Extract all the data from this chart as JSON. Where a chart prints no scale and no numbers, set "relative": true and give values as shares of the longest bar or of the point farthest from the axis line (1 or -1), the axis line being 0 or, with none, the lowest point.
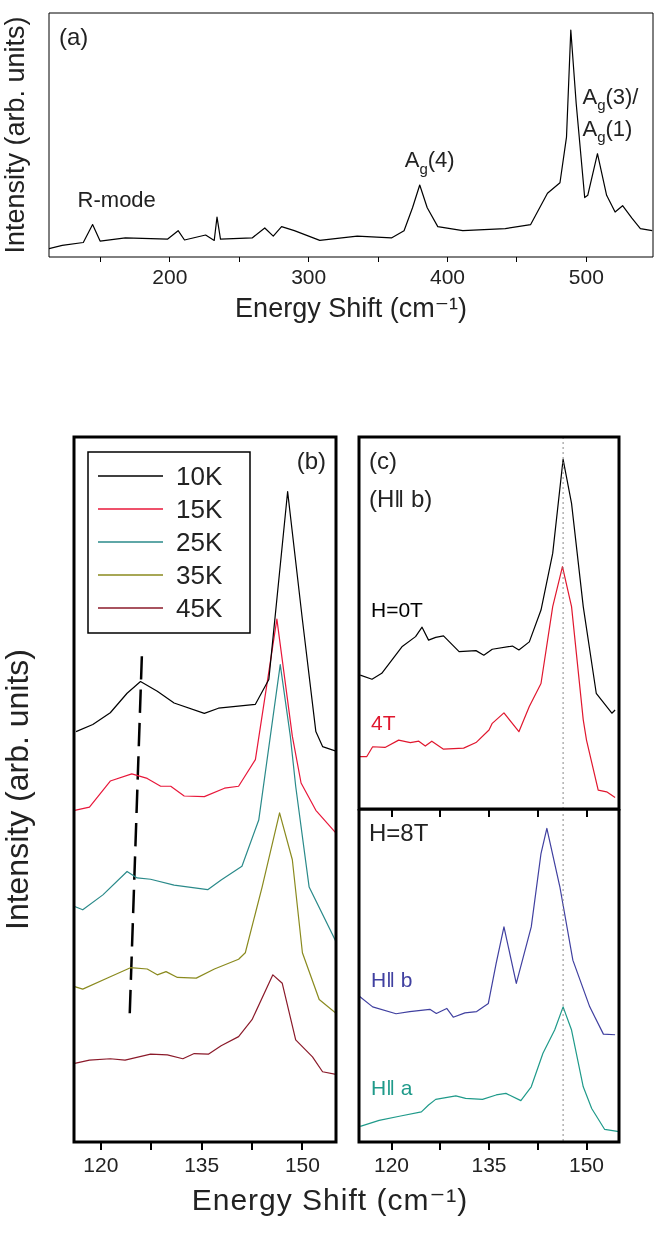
{
  "chart_data": [
    {
      "type": "line",
      "relative": true,
      "xlabel": "Energy Shift (cm⁻¹)",
      "ylabel": "Intensity (arb. units)",
      "xlim": [
        113,
        548
      ],
      "xticks": [
        {
          "value": 150,
          "label": null
        },
        200,
        {
          "value": 250,
          "label": null
        },
        300,
        {
          "value": 350,
          "label": null
        },
        400,
        {
          "value": 450,
          "label": null
        },
        500
      ],
      "annotations": [
        "(a)",
        {
          "text": "R-mode",
          "x": 144.4,
          "y": 0.143
        },
        {
          "text": "A$_{g}$(4)",
          "x": 380,
          "y": 0.317
        },
        {
          "text": "A$_{g}$(3)/\nA$_{g}$(1)",
          "x": 508,
          "y": 0.455
        }
      ],
      "series": [
        {
          "color": "#000000",
          "x": [
            113,
            122.5,
            137.7,
            144.4,
            149.8,
            168,
            198.5,
            206,
            210.6,
            225.8,
            232,
            234,
            236.5,
            259.3,
            268.4,
            274.5,
            280.5,
            289.7,
            308,
            335,
            359.6,
            368.7,
            374.8,
            380,
            385.4,
            393,
            411,
            441.6,
            459.9,
            472,
            481,
            485.7,
            488.8,
            492.7,
            498.8,
            501,
            508,
            514.6,
            520.7,
            526.1,
            532.8,
            538.9,
            547.4
          ],
          "values": [
            0.037,
            0.051,
            0.064,
            0.143,
            0.07,
            0.084,
            0.079,
            0.116,
            0.075,
            0.097,
            0.073,
            0.176,
            0.079,
            0.084,
            0.128,
            0.092,
            0.134,
            0.116,
            0.073,
            0.092,
            0.084,
            0.116,
            0.217,
            0.317,
            0.217,
            0.134,
            0.116,
            0.125,
            0.143,
            0.281,
            0.327,
            0.528,
            1.0,
            0.675,
            0.262,
            0.272,
            0.455,
            0.272,
            0.198,
            0.226,
            0.171,
            0.125,
            0.116
          ]
        }
      ]
    },
    {
      "type": "line",
      "relative": true,
      "xlabel": "Energy Shift (cm⁻¹)",
      "ylabel": "Intensity (arb. units)",
      "xlim": [
        116,
        155
      ],
      "xticks": [
        120,
        {
          "value": 127.5,
          "label": null
        },
        135,
        {
          "value": 142.5,
          "label": null
        },
        150
      ],
      "legend": "top left",
      "annotations": [
        "(b)"
      ],
      "series": [
        {
          "name": "10K",
          "color": "#000000",
          "x": [
            116.3,
            118.8,
            121.4,
            123.9,
            125.9,
            128.4,
            130.9,
            135.4,
            137.5,
            143.0,
            145.0,
            147.8,
            150.0,
            152.0,
            153.0,
            155.0
          ],
          "values": [
            0.631,
            0.642,
            0.66,
            0.69,
            0.708,
            0.693,
            0.675,
            0.659,
            0.667,
            0.673,
            0.711,
            1.0,
            0.803,
            0.631,
            0.608,
            0.601
          ]
        },
        {
          "name": "15K",
          "color": "#e8173a",
          "x": [
            116.1,
            118.3,
            121.4,
            124.6,
            126.9,
            128.9,
            130.4,
            132.4,
            135.4,
            138.4,
            140.5,
            143.0,
            146.2,
            148.5,
            149.8,
            152.0,
            155.0
          ],
          "values": [
            0.51,
            0.515,
            0.555,
            0.566,
            0.559,
            0.547,
            0.547,
            0.532,
            0.531,
            0.544,
            0.547,
            0.588,
            0.804,
            0.624,
            0.552,
            0.51,
            0.475
          ]
        },
        {
          "name": "25K",
          "color": "#2a8a8a",
          "x": [
            116.1,
            117.3,
            120.3,
            123.9,
            125.4,
            127.4,
            130.9,
            135.9,
            137.9,
            141.0,
            143.5,
            146.7,
            148.2,
            149.0,
            151.0,
            155.0
          ],
          "values": [
            0.362,
            0.357,
            0.38,
            0.416,
            0.406,
            0.404,
            0.395,
            0.388,
            0.403,
            0.424,
            0.495,
            0.734,
            0.624,
            0.547,
            0.392,
            0.308
          ]
        },
        {
          "name": "35K",
          "color": "#8a8a1e",
          "x": [
            116.1,
            117.3,
            121.4,
            124.4,
            126.9,
            128.4,
            129.7,
            131.4,
            134.2,
            136.9,
            140.5,
            141.5,
            144.0,
            146.6,
            148.5,
            150.0,
            152.5,
            155.0
          ],
          "values": [
            0.239,
            0.235,
            0.254,
            0.268,
            0.266,
            0.257,
            0.262,
            0.253,
            0.252,
            0.266,
            0.281,
            0.291,
            0.392,
            0.506,
            0.434,
            0.291,
            0.219,
            0.198
          ]
        },
        {
          "name": "45K",
          "color": "#8b1a2a",
          "x": [
            116.1,
            118.3,
            121.4,
            123.6,
            127.4,
            129.9,
            132.2,
            133.9,
            136.0,
            137.9,
            140.5,
            142.5,
            145.6,
            147.0,
            149.0,
            151.5,
            153.0,
            155.0
          ],
          "values": [
            0.121,
            0.126,
            0.128,
            0.126,
            0.135,
            0.134,
            0.128,
            0.136,
            0.135,
            0.148,
            0.162,
            0.188,
            0.257,
            0.244,
            0.157,
            0.131,
            0.108,
            0.104
          ]
        },
        {
          "type": "line",
          "color": "#000000",
          "line_style": "dashed",
          "x": [
            126.1,
            124.3
          ],
          "values": [
            0.747,
            0.198
          ]
        }
      ]
    },
    {
      "type": "line",
      "relative": true,
      "xlim": [
        115,
        155
      ],
      "xticks": [
        120,
        {
          "value": 127.5,
          "label": null
        },
        135,
        {
          "value": 142.5,
          "label": null
        },
        150
      ],
      "tick_labels": false,
      "annotations": [
        "(c)",
        "(H‖ b)"
      ],
      "ref_lines": [
        {
          "axis": "x",
          "value": 146.4,
          "color": "#888888",
          "line_style": "dotted"
        }
      ],
      "series": [
        {
          "name": "H=0T",
          "color": "#000000",
          "x": [
            115.2,
            117.0,
            118.5,
            121.6,
            123.7,
            124.7,
            125.7,
            126.8,
            128.0,
            130.4,
            133.0,
            134.2,
            135.5,
            138.6,
            139.6,
            141.2,
            143.0,
            144.8,
            146.4,
            147.7,
            149.5,
            151.5,
            153.9,
            154.4
          ],
          "values": [
            0.383,
            0.371,
            0.388,
            0.464,
            0.493,
            0.52,
            0.483,
            0.491,
            0.495,
            0.45,
            0.453,
            0.44,
            0.457,
            0.466,
            0.455,
            0.478,
            0.569,
            0.731,
            1.0,
            0.874,
            0.579,
            0.331,
            0.274,
            0.283
          ]
        },
        {
          "name": "4T",
          "color": "#e0172e",
          "x": [
            115.1,
            116.2,
            117.1,
            119.0,
            121.1,
            122.9,
            124.2,
            125.2,
            126.2,
            128.0,
            131.1,
            133.0,
            135.0,
            135.5,
            137.3,
            139.6,
            141.2,
            143.0,
            144.8,
            146.3,
            147.7,
            149.5,
            150.0,
            151.8,
            153.1,
            154.4
          ],
          "values": [
            0.15,
            0.15,
            0.178,
            0.176,
            0.197,
            0.19,
            0.194,
            0.18,
            0.194,
            0.171,
            0.174,
            0.19,
            0.226,
            0.245,
            0.275,
            0.221,
            0.293,
            0.359,
            0.579,
            0.693,
            0.579,
            0.255,
            0.197,
            0.054,
            0.049,
            0.033
          ]
        }
      ]
    },
    {
      "type": "line",
      "relative": true,
      "xlim": [
        115,
        155
      ],
      "xticks": [
        120,
        {
          "value": 127.5,
          "label": null
        },
        135,
        {
          "value": 142.5,
          "label": null
        },
        150
      ],
      "annotations": [
        "H=8T"
      ],
      "ref_lines": [
        {
          "axis": "x",
          "value": 146.4,
          "color": "#888888",
          "line_style": "dotted"
        }
      ],
      "series": [
        {
          "name": "H‖ b",
          "color": "#4040a0",
          "x": [
            115.1,
            117.1,
            120.7,
            122.8,
            125.9,
            126.9,
            128.5,
            129.5,
            131.3,
            133.1,
            134.9,
            136.1,
            137.3,
            139.2,
            141.5,
            143.0,
            143.9,
            145.9,
            147.9,
            150.5,
            152.6,
            154.4
          ],
          "values": [
            0.464,
            0.431,
            0.409,
            0.416,
            0.423,
            0.41,
            0.426,
            0.398,
            0.412,
            0.416,
            0.442,
            0.57,
            0.686,
            0.506,
            0.686,
            0.92,
            1.0,
            0.814,
            0.58,
            0.431,
            0.344,
            0.342
          ]
        },
        {
          "name": "H‖ a",
          "color": "#1f9a8a",
          "x": [
            115.2,
            118.1,
            121.4,
            124.6,
            125.7,
            126.8,
            129.9,
            131.4,
            134.0,
            136.1,
            137.6,
            139.9,
            141.5,
            143.3,
            145.1,
            146.4,
            147.7,
            149.5,
            150.8,
            152.8,
            155.0
          ],
          "values": [
            0.05,
            0.069,
            0.083,
            0.096,
            0.118,
            0.136,
            0.147,
            0.139,
            0.136,
            0.15,
            0.155,
            0.132,
            0.176,
            0.283,
            0.357,
            0.431,
            0.357,
            0.176,
            0.107,
            0.04,
            0.033
          ]
        }
      ]
    }
  ]
}
